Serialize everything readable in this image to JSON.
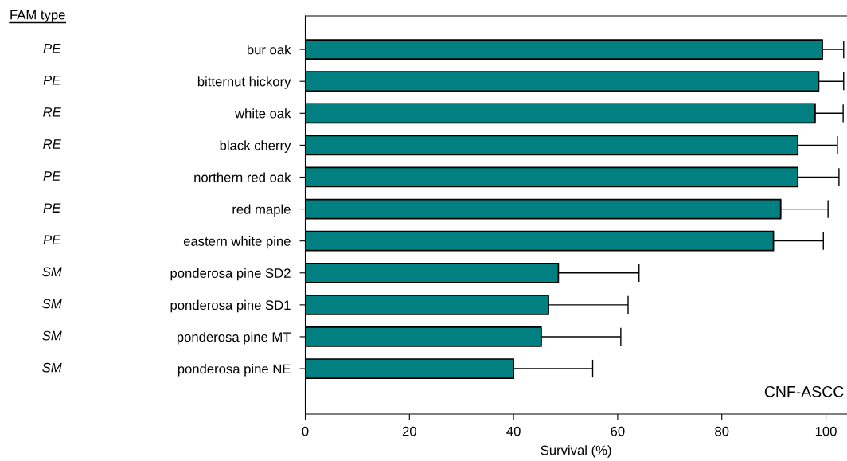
{
  "chart_data": {
    "type": "bar",
    "orientation": "horizontal",
    "xlabel": "Survival (%)",
    "categories": [
      "bur oak",
      "bitternut hickory",
      "white oak",
      "black cherry",
      "northern red oak",
      "red maple",
      "eastern white pine",
      "ponderosa pine SD2",
      "ponderosa pine SD1",
      "ponderosa pine MT",
      "ponderosa pine NE"
    ],
    "y2_categories": [
      "PE",
      "PE",
      "RE",
      "RE",
      "PE",
      "PE",
      "PE",
      "SM",
      "SM",
      "SM",
      "SM"
    ],
    "values": [
      99.3,
      98.6,
      97.9,
      94.6,
      94.6,
      91.3,
      89.9,
      48.6,
      46.7,
      45.3,
      40.0
    ],
    "errors": [
      [
        99.3,
        103.4
      ],
      [
        98.6,
        103.4
      ],
      [
        97.9,
        103.3
      ],
      [
        94.6,
        102.2
      ],
      [
        94.6,
        102.5
      ],
      [
        91.3,
        100.4
      ],
      [
        89.9,
        99.5
      ],
      [
        48.6,
        64.1
      ],
      [
        46.7,
        62.0
      ],
      [
        45.3,
        60.6
      ],
      [
        40.0,
        55.2
      ]
    ],
    "color": "#008080",
    "xlim": [
      0,
      104
    ],
    "xticks": [
      0,
      20,
      40,
      60,
      80,
      100
    ],
    "annotations": [
      "FAM type",
      "CNF-ASCC"
    ]
  }
}
